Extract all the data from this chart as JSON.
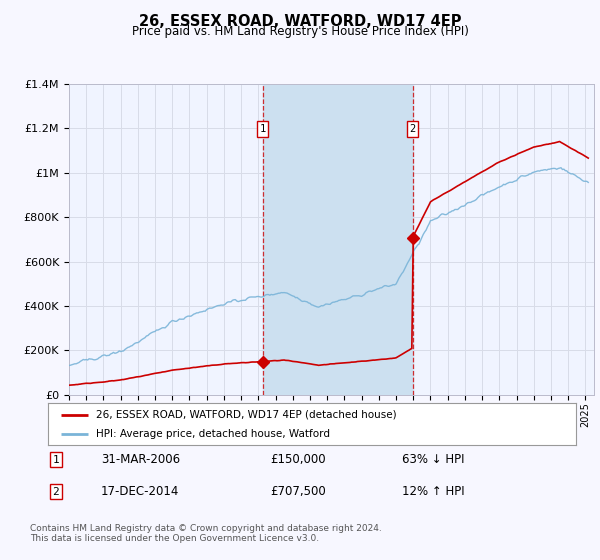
{
  "title": "26, ESSEX ROAD, WATFORD, WD17 4EP",
  "subtitle": "Price paid vs. HM Land Registry's House Price Index (HPI)",
  "hpi_label": "HPI: Average price, detached house, Watford",
  "price_label": "26, ESSEX ROAD, WATFORD, WD17 4EP (detached house)",
  "legend_note": "Contains HM Land Registry data © Crown copyright and database right 2024.\nThis data is licensed under the Open Government Licence v3.0.",
  "transaction1_date": "31-MAR-2006",
  "transaction1_price": "£150,000",
  "transaction1_hpi": "63% ↓ HPI",
  "transaction2_date": "17-DEC-2014",
  "transaction2_price": "£707,500",
  "transaction2_hpi": "12% ↑ HPI",
  "hpi_color": "#7ab4d8",
  "price_color": "#cc0000",
  "background_color": "#f7f7ff",
  "plot_bg_color": "#f0f4ff",
  "grid_color": "#d8dce8",
  "ylim": [
    0,
    1400000
  ],
  "yticks": [
    0,
    200000,
    400000,
    600000,
    800000,
    1000000,
    1200000,
    1400000
  ],
  "ytick_labels": [
    "£0",
    "£200K",
    "£400K",
    "£600K",
    "£800K",
    "£1M",
    "£1.2M",
    "£1.4M"
  ],
  "xlim_start": 1995.0,
  "xlim_end": 2025.5,
  "transaction1_x": 2006.25,
  "transaction1_y": 150000,
  "transaction2_x": 2014.96,
  "transaction2_y": 707500,
  "hpi_span_color": "#cce0f0",
  "seed": 42
}
